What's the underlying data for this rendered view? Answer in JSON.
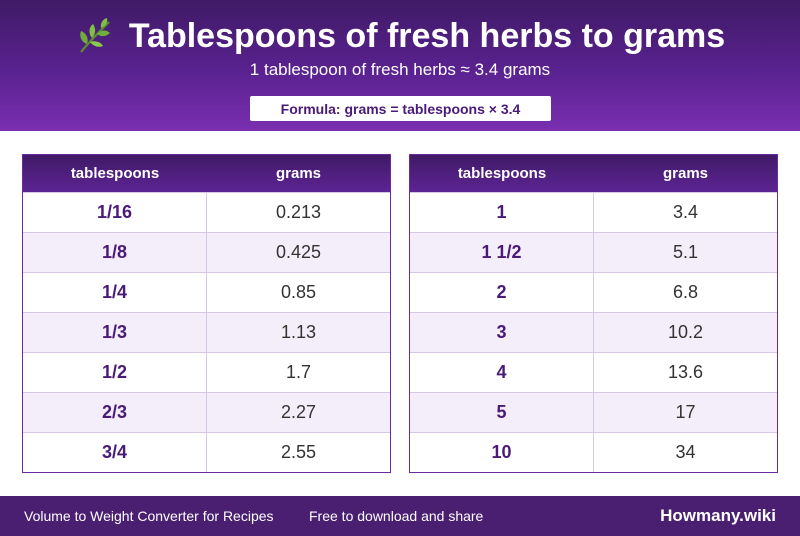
{
  "header": {
    "title": "Tablespoons of fresh herbs to grams",
    "icon": "herb-leaf-icon",
    "subtitle": "1 tablespoon of fresh herbs ≈ 3.4 grams",
    "formula": "Formula: grams = tablespoons × 3.4"
  },
  "tables": {
    "left": {
      "col1": "tablespoons",
      "col2": "grams",
      "rows": [
        {
          "tbsp": "1/16",
          "grams": "0.213"
        },
        {
          "tbsp": "1/8",
          "grams": "0.425"
        },
        {
          "tbsp": "1/4",
          "grams": "0.85"
        },
        {
          "tbsp": "1/3",
          "grams": "1.13"
        },
        {
          "tbsp": "1/2",
          "grams": "1.7"
        },
        {
          "tbsp": "2/3",
          "grams": "2.27"
        },
        {
          "tbsp": "3/4",
          "grams": "2.55"
        }
      ]
    },
    "right": {
      "col1": "tablespoons",
      "col2": "grams",
      "rows": [
        {
          "tbsp": "1",
          "grams": "3.4"
        },
        {
          "tbsp": "1 1/2",
          "grams": "5.1"
        },
        {
          "tbsp": "2",
          "grams": "6.8"
        },
        {
          "tbsp": "3",
          "grams": "10.2"
        },
        {
          "tbsp": "4",
          "grams": "13.6"
        },
        {
          "tbsp": "5",
          "grams": "17"
        },
        {
          "tbsp": "10",
          "grams": "34"
        }
      ]
    }
  },
  "footer": {
    "left": "Volume to Weight Converter for Recipes",
    "middle": "Free to download and share",
    "brand": "Howmany.wiki"
  },
  "colors": {
    "accent": "#5a2290",
    "row_alt": "#f4eefa",
    "footer": "#4a1f72"
  }
}
